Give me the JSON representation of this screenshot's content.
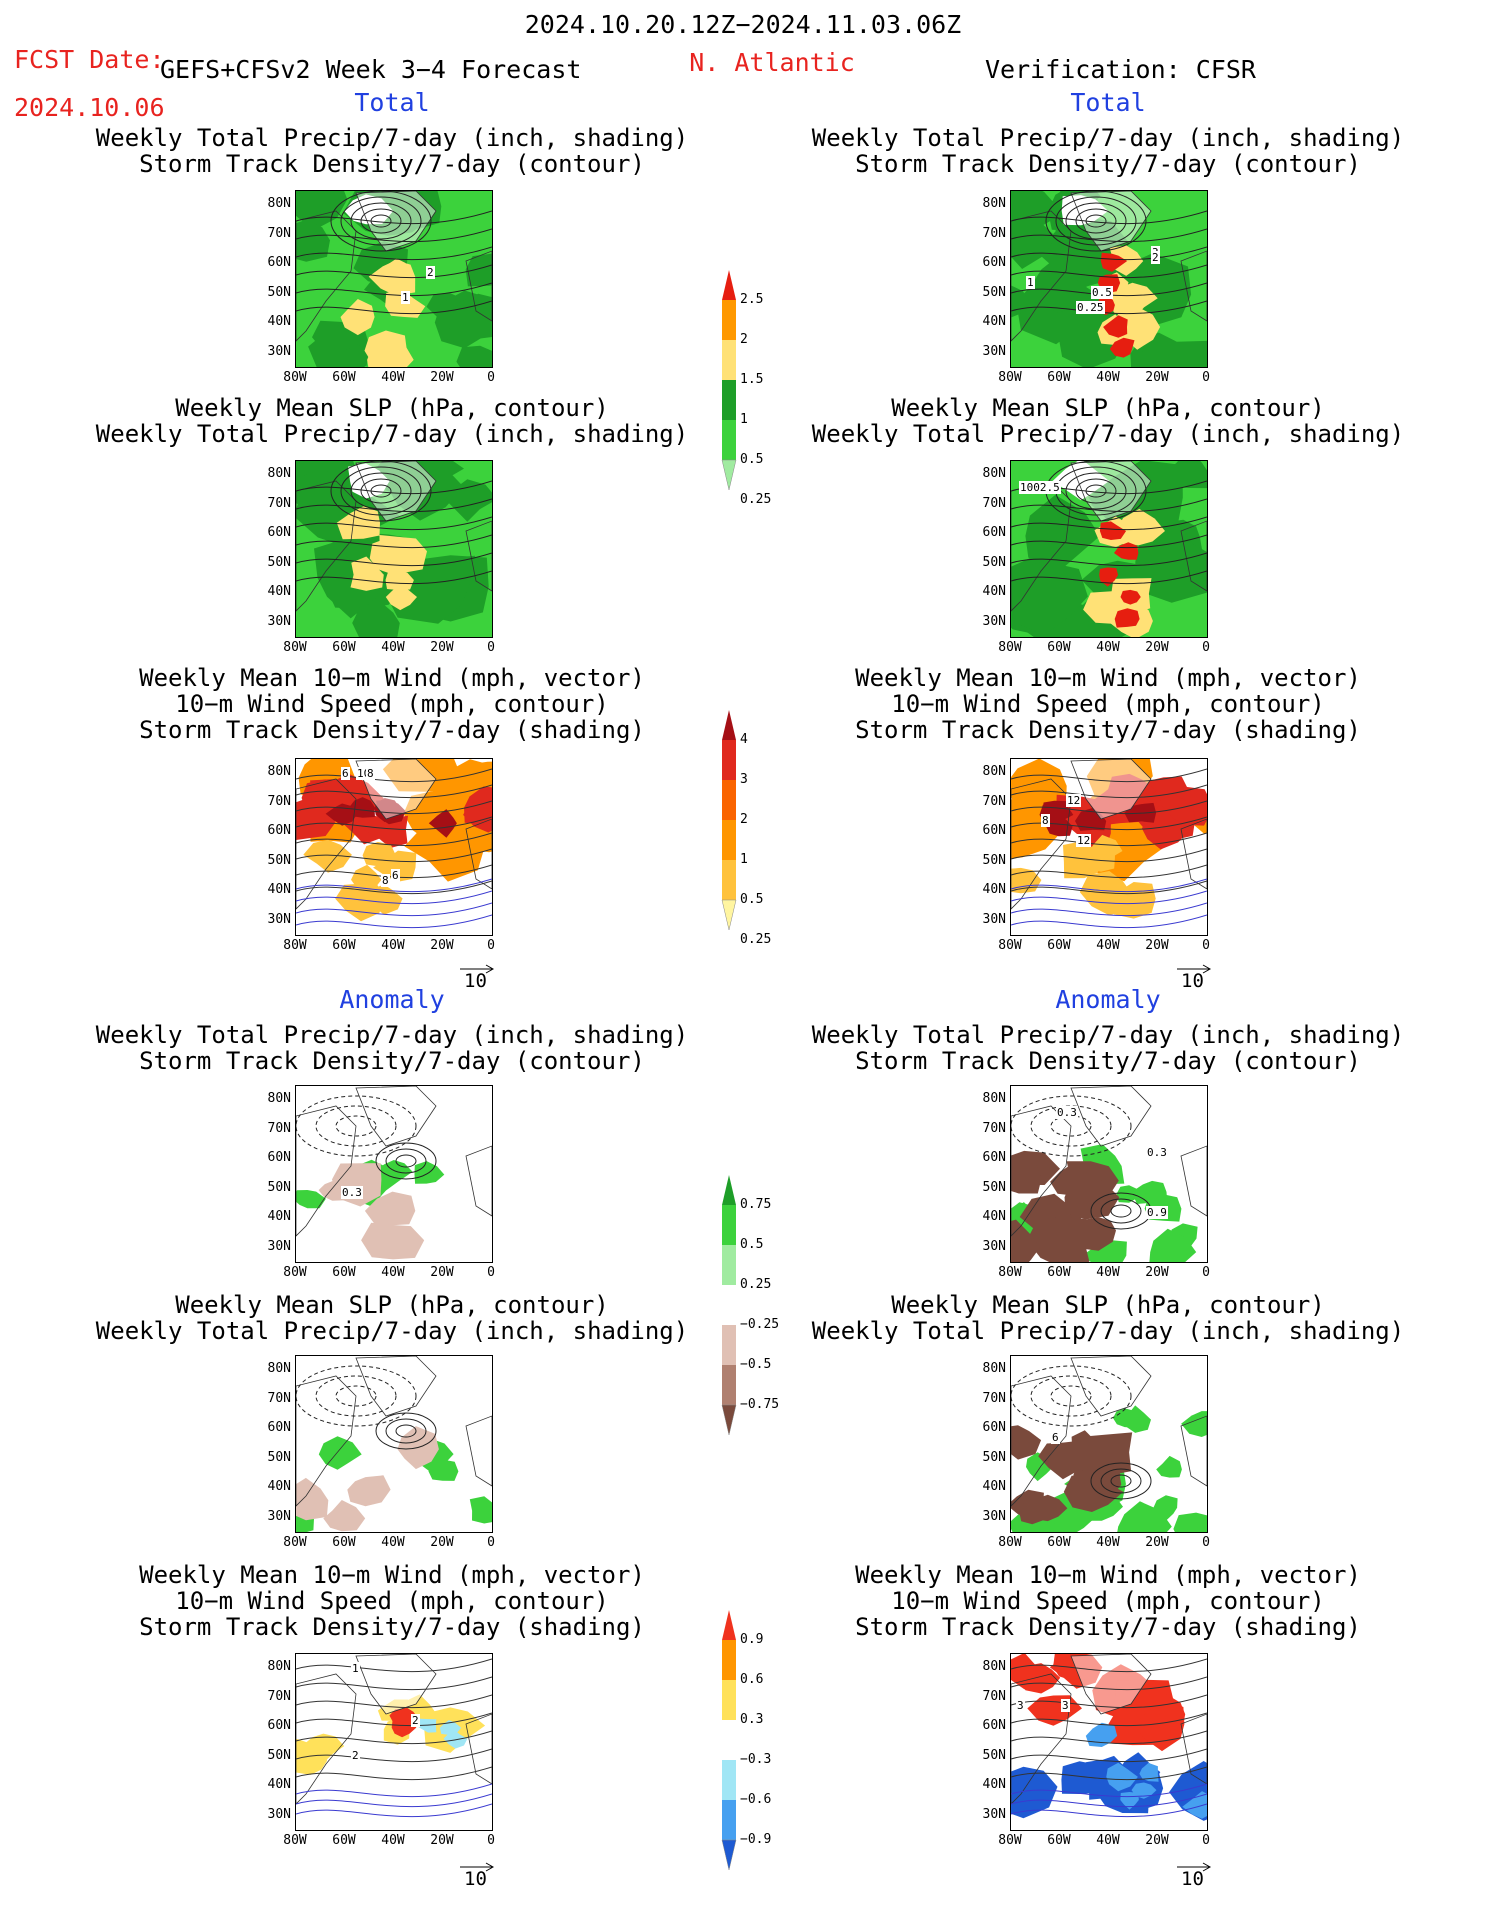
{
  "header": {
    "date_range": "2024.10.20.12Z−2024.11.03.06Z",
    "fcst_label": "FCST Date:",
    "fcst_date": "2024.10.06",
    "model": "GEFS+CFSv2 Week 3−4 Forecast",
    "region": "N. Atlantic",
    "verification": "Verification: CFSR"
  },
  "sections": {
    "total": "Total",
    "anomaly": "Anomaly"
  },
  "titles": {
    "precip_storm": [
      "Weekly Total Precip/7-day (inch, shading)",
      "Storm Track Density/7-day (contour)"
    ],
    "slp_precip": [
      "Weekly Mean SLP (hPa, contour)",
      "Weekly Total Precip/7-day (inch, shading)"
    ],
    "wind_storm": [
      "Weekly Mean 10−m Wind (mph, vector)",
      "10−m Wind Speed (mph, contour)",
      "Storm Track Density/7-day (shading)"
    ]
  },
  "axes": {
    "lat": [
      "80N",
      "70N",
      "60N",
      "50N",
      "40N",
      "30N"
    ],
    "lon": [
      "80W",
      "60W",
      "40W",
      "20W",
      "0"
    ]
  },
  "vector_ref": "10",
  "contour_labels": {
    "fc_total_storm": [
      "2",
      "1"
    ],
    "vf_total_storm": [
      "3",
      "2",
      "1",
      "0.5",
      "0.25"
    ],
    "vf_total_slp": [
      "1002.5"
    ],
    "fc_total_wind": [
      "6",
      "10",
      "8",
      "6",
      "8"
    ],
    "vf_total_wind": [
      "12",
      "8",
      "12"
    ],
    "fc_anom_storm": [
      "0.3"
    ],
    "vf_anom_storm": [
      "0.3",
      "0.3",
      "0.9"
    ],
    "vf_anom_slp": [
      "6"
    ],
    "fc_anom_wind": [
      "1",
      "2",
      "2"
    ],
    "vf_anom_wind": [
      "3",
      "3"
    ]
  },
  "colorbars": {
    "precip_total": {
      "labels": [
        "2.5",
        "2",
        "1.5",
        "1",
        "0.5",
        "0.25"
      ],
      "colors": [
        "#e61e10",
        "#ff9900",
        "#ffe176",
        "#1e9e28",
        "#3cd23c",
        "#a0eba0"
      ]
    },
    "storm_total": {
      "labels": [
        "4",
        "3",
        "2",
        "1",
        "0.5",
        "0.25"
      ],
      "colors": [
        "#a50f15",
        "#e0291e",
        "#fa6400",
        "#ff9600",
        "#ffc23c",
        "#fff5a0"
      ]
    },
    "precip_anom": {
      "labels": [
        "0.75",
        "0.5",
        "0.25",
        "−0.25",
        "−0.5",
        "−0.75"
      ],
      "colors": [
        "#1e9e28",
        "#3cd23c",
        "#a0eba0",
        "#ffffff",
        "#e0c0b4",
        "#b08070",
        "#7a4a3c"
      ]
    },
    "storm_anom": {
      "labels": [
        "0.9",
        "0.6",
        "0.3",
        "−0.3",
        "−0.6",
        "−0.9"
      ],
      "colors": [
        "#f0321e",
        "#ff9600",
        "#ffe15a",
        "#ffffff",
        "#a0e6f5",
        "#46a0f0",
        "#1e5ad2"
      ]
    }
  },
  "colors": {
    "title_red": "#e8231f",
    "section_blue": "#2040e0"
  }
}
